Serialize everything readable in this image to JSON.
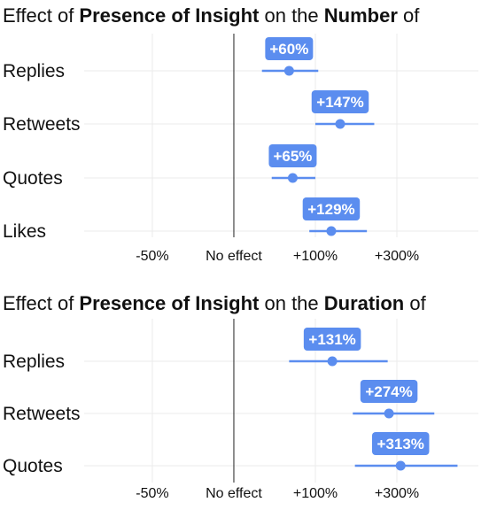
{
  "colors": {
    "accent": "#5b8def",
    "label_bg": "#5b8def",
    "line": "#222222"
  },
  "chart_data": [
    {
      "type": "scatter",
      "title_parts": [
        {
          "text": "Effect of ",
          "bold": false
        },
        {
          "text": "Presence of Insight",
          "bold": true
        },
        {
          "text": " on the ",
          "bold": false
        },
        {
          "text": "Number",
          "bold": true
        },
        {
          "text": " of",
          "bold": false
        }
      ],
      "categories": [
        "Replies",
        "Retweets",
        "Quotes",
        "Likes"
      ],
      "x_ticks": [
        {
          "value": -50,
          "label": "-50%"
        },
        {
          "value": 0,
          "label": "No effect"
        },
        {
          "value": 100,
          "label": "+100%"
        },
        {
          "value": 300,
          "label": "+300%"
        }
      ],
      "axis": "log-ratio",
      "xlim": [
        -72,
        700
      ],
      "series": [
        {
          "values": [
            60,
            147,
            65,
            129
          ],
          "ci_low": [
            27,
            100,
            38,
            90
          ],
          "ci_high": [
            105,
            230,
            100,
            210
          ],
          "labels": [
            "+60%",
            "+147%",
            "+65%",
            "+129%"
          ]
        }
      ]
    },
    {
      "type": "scatter",
      "title_parts": [
        {
          "text": "Effect of ",
          "bold": false
        },
        {
          "text": "Presence of Insight",
          "bold": true
        },
        {
          "text": " on the ",
          "bold": false
        },
        {
          "text": "Duration",
          "bold": true
        },
        {
          "text": " of",
          "bold": false
        }
      ],
      "categories": [
        "Replies",
        "Retweets",
        "Quotes"
      ],
      "x_ticks": [
        {
          "value": -50,
          "label": "-50%"
        },
        {
          "value": 0,
          "label": "No effect"
        },
        {
          "value": 100,
          "label": "+100%"
        },
        {
          "value": 300,
          "label": "+300%"
        }
      ],
      "axis": "log-ratio",
      "xlim": [
        -72,
        700
      ],
      "series": [
        {
          "values": [
            131,
            274,
            313
          ],
          "ci_low": [
            60,
            175,
            180
          ],
          "ci_high": [
            270,
            450,
            570
          ],
          "labels": [
            "+131%",
            "+274%",
            "+313%"
          ]
        }
      ]
    }
  ]
}
